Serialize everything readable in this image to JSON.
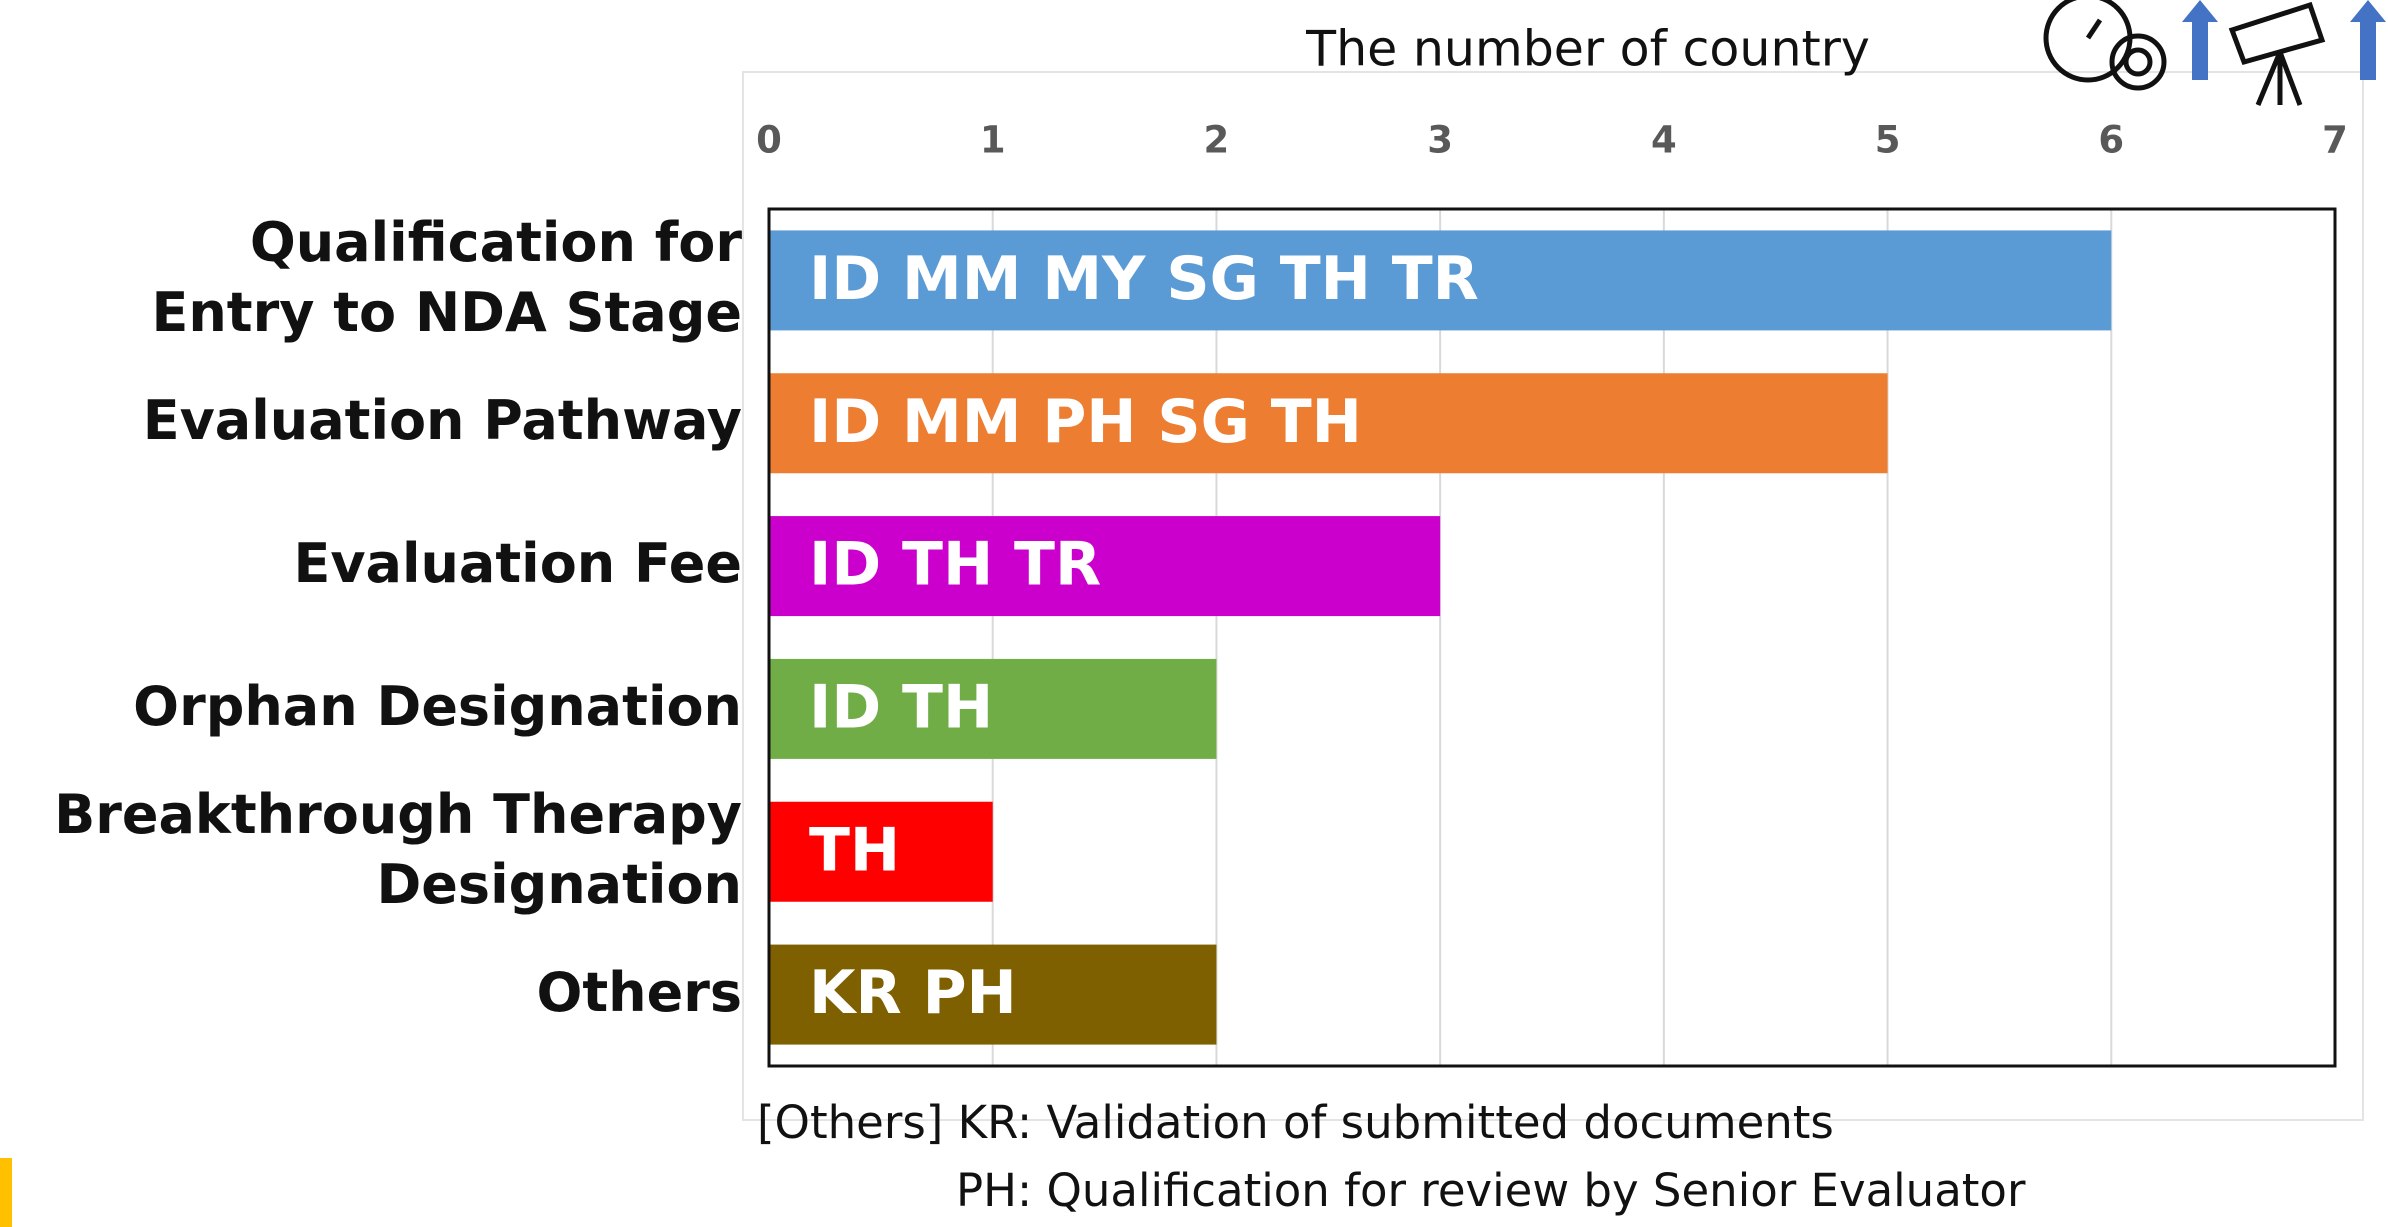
{
  "chart_data": {
    "type": "barh",
    "xlabel": "The number of country",
    "categories": [
      "Qualification for\nEntry to NDA Stage",
      "Evaluation Pathway",
      "Evaluation Fee",
      "Orphan Designation",
      "Breakthrough Therapy\nDesignation",
      "Others"
    ],
    "values": [
      6,
      5,
      3,
      2,
      1,
      2
    ],
    "bar_labels": [
      "ID MM MY SG TH TR",
      "ID MM PH SG TH",
      "ID TH TR",
      "ID TH",
      "TH",
      "KR PH"
    ],
    "colors": [
      "#5b9bd5",
      "#ed7d31",
      "#cc00cc",
      "#70ad47",
      "#ff0000",
      "#7f6000"
    ],
    "xlim": [
      0,
      7
    ],
    "xticks": [
      0,
      1,
      2,
      3,
      4,
      5,
      6,
      7
    ],
    "grid": true,
    "annotations": [
      "[Others] KR: Validation of submitted documents",
      "PH: Qualification for review by Senior Evaluator"
    ]
  }
}
